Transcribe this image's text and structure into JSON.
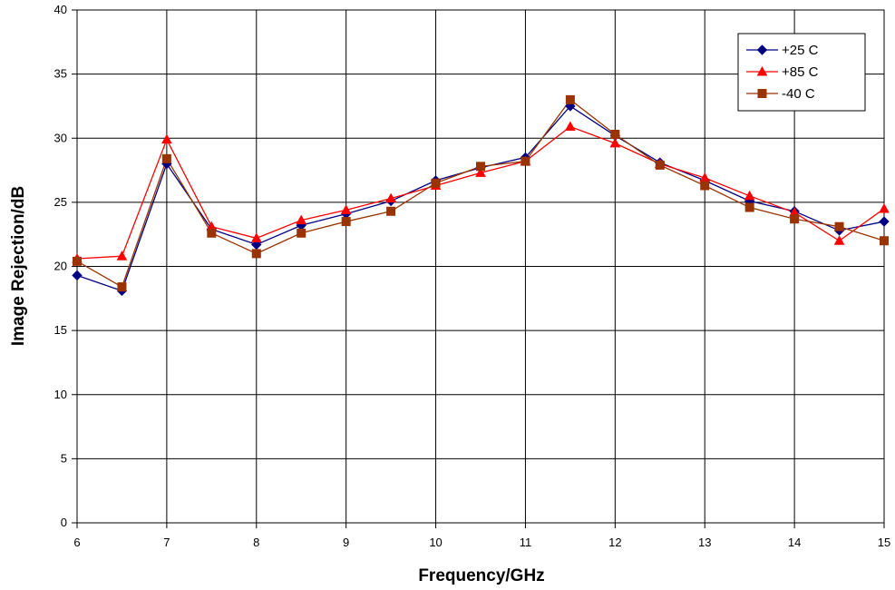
{
  "chart_data": {
    "type": "line",
    "title": "",
    "xlabel": "Frequency/GHz",
    "ylabel": "Image Rejection/dB",
    "xlim": [
      6,
      15
    ],
    "ylim": [
      0,
      40
    ],
    "x_ticks": [
      6,
      7,
      8,
      9,
      10,
      11,
      12,
      13,
      14,
      15
    ],
    "y_ticks": [
      0,
      5,
      10,
      15,
      20,
      25,
      30,
      35,
      40
    ],
    "x_tick_labels": [
      "6",
      "7",
      "8",
      "9",
      "10",
      "11",
      "12",
      "13",
      "14",
      "15"
    ],
    "y_tick_labels": [
      "0",
      "5",
      "10",
      "15",
      "20",
      "25",
      "30",
      "35",
      "40"
    ],
    "grid": true,
    "legend_position": "top-right",
    "x": [
      6,
      6.5,
      7,
      7.5,
      8,
      8.5,
      9,
      9.5,
      10,
      10.5,
      11,
      11.5,
      12,
      12.5,
      13,
      13.5,
      14,
      14.5,
      15
    ],
    "series": [
      {
        "name": "+25 C",
        "color": "#000080",
        "marker": "diamond",
        "values": [
          19.3,
          18.1,
          28.0,
          22.9,
          21.7,
          23.2,
          24.1,
          25.1,
          26.7,
          27.7,
          28.5,
          32.5,
          30.2,
          28.1,
          26.7,
          25.1,
          24.3,
          22.8,
          23.5
        ]
      },
      {
        "name": "+85 C",
        "color": "#FF0000",
        "marker": "triangle",
        "values": [
          20.6,
          20.8,
          29.9,
          23.1,
          22.2,
          23.6,
          24.4,
          25.3,
          26.3,
          27.3,
          28.2,
          30.9,
          29.6,
          28.0,
          26.9,
          25.5,
          24.2,
          22.0,
          24.5
        ]
      },
      {
        "name": "-40 C",
        "color": "#993300",
        "marker": "square",
        "values": [
          20.4,
          18.4,
          28.4,
          22.6,
          21.0,
          22.6,
          23.5,
          24.3,
          26.5,
          27.8,
          28.2,
          33.0,
          30.3,
          27.9,
          26.3,
          24.6,
          23.7,
          23.1,
          22.0
        ]
      }
    ]
  }
}
